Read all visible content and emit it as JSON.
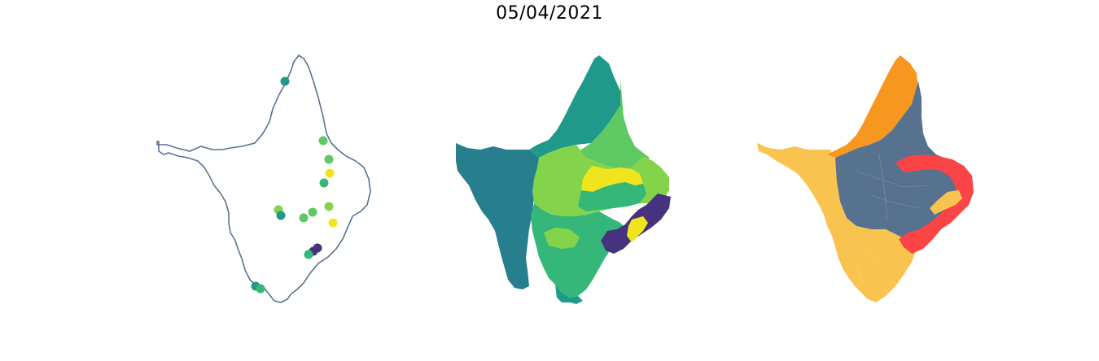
{
  "figure": {
    "title": "05/04/2021"
  },
  "colors": {
    "outline": "#5a7390",
    "viridis_dark": "#46327e",
    "viridis_teal_dark": "#277f8e",
    "viridis_teal": "#1f9a8a",
    "viridis_green": "#35b779",
    "viridis_lightgreen": "#5ec962",
    "viridis_lime": "#84d44b",
    "viridis_yellow": "#f0e51c",
    "cat_orange": "#f7971f",
    "cat_slate": "#57728e",
    "cat_red": "#fb4445",
    "cat_gold": "#f8c44f"
  },
  "maps": [
    {
      "id": "points",
      "kind": "point-map"
    },
    {
      "id": "choropleth",
      "kind": "continuous-choropleth"
    },
    {
      "id": "categorical",
      "kind": "categorical-choropleth"
    }
  ]
}
